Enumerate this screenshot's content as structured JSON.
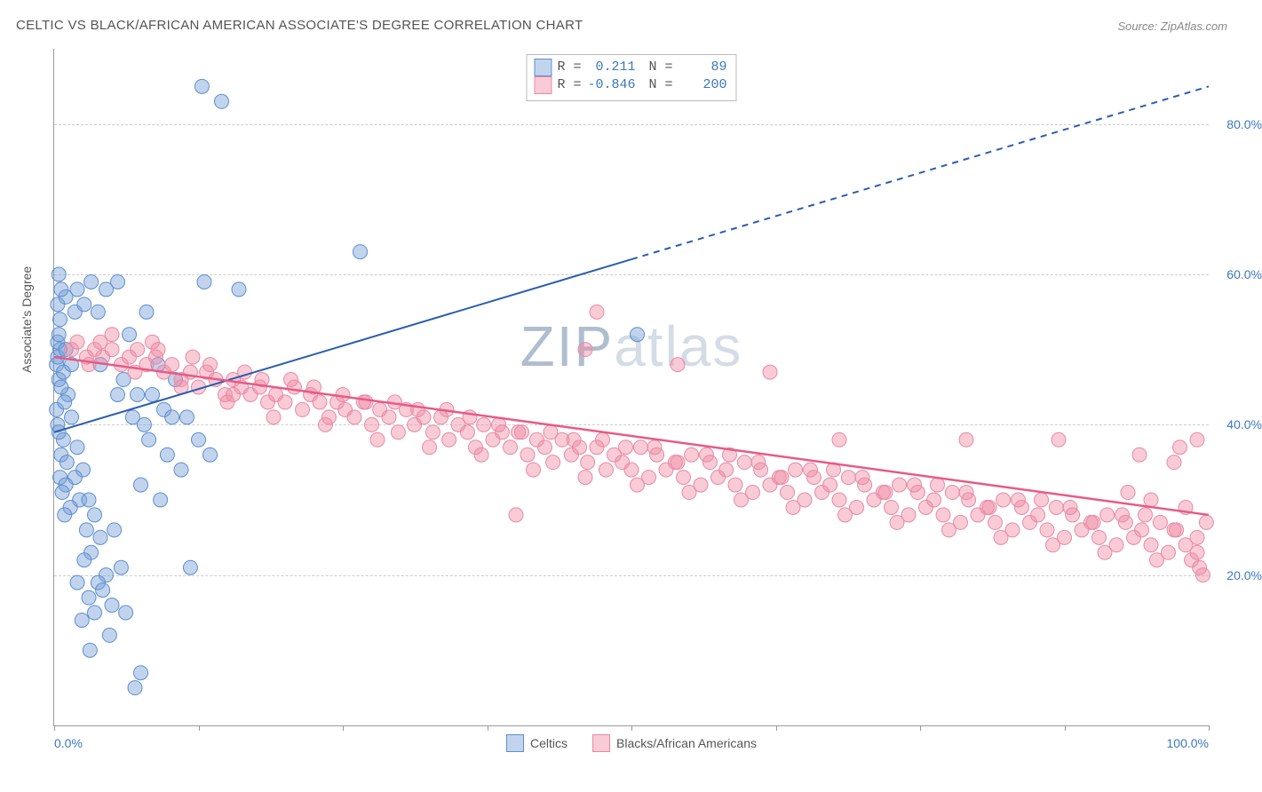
{
  "title": "CELTIC VS BLACK/AFRICAN AMERICAN ASSOCIATE'S DEGREE CORRELATION CHART",
  "source": "Source: ZipAtlas.com",
  "ylabel": "Associate's Degree",
  "watermark": {
    "z": "ZIP",
    "rest": "atlas"
  },
  "chart": {
    "type": "scatter",
    "xlim": [
      0,
      100
    ],
    "ylim": [
      0,
      90
    ],
    "yticks": [
      20,
      40,
      60,
      80
    ],
    "ytick_labels": [
      "20.0%",
      "40.0%",
      "60.0%",
      "80.0%"
    ],
    "xtick_positions": [
      0,
      12.5,
      25,
      37.5,
      50,
      62.5,
      75,
      87.5,
      100
    ],
    "xtick_labels": {
      "0": "0.0%",
      "100": "100.0%"
    },
    "grid_color": "#cccccc",
    "axis_color": "#999999",
    "background_color": "#ffffff"
  },
  "stats": [
    {
      "R": "0.211",
      "N": "89"
    },
    {
      "R": "-0.846",
      "N": "200"
    }
  ],
  "series": [
    {
      "name": "Celtics",
      "label": "Celtics",
      "marker_fill": "rgba(120,160,215,0.45)",
      "marker_stroke": "#5b8fd0",
      "marker_radius": 8,
      "trend": {
        "x1": 0,
        "y1": 39,
        "x2_solid": 50,
        "y2_solid": 62,
        "x2_dash": 100,
        "y2_dash": 85,
        "color": "#2a5db0",
        "width": 2
      },
      "points": [
        [
          0.2,
          48
        ],
        [
          0.3,
          49
        ],
        [
          0.5,
          50
        ],
        [
          0.4,
          46
        ],
        [
          0.8,
          47
        ],
        [
          0.3,
          51
        ],
        [
          1.0,
          50
        ],
        [
          0.4,
          52
        ],
        [
          1.2,
          44
        ],
        [
          0.6,
          45
        ],
        [
          0.2,
          42
        ],
        [
          0.9,
          43
        ],
        [
          1.5,
          41
        ],
        [
          0.3,
          40
        ],
        [
          0.8,
          38
        ],
        [
          0.4,
          39
        ],
        [
          2.0,
          37
        ],
        [
          0.6,
          36
        ],
        [
          1.1,
          35
        ],
        [
          2.5,
          34
        ],
        [
          0.5,
          33
        ],
        [
          1.8,
          33
        ],
        [
          1.0,
          32
        ],
        [
          0.7,
          31
        ],
        [
          2.2,
          30
        ],
        [
          3.0,
          30
        ],
        [
          1.4,
          29
        ],
        [
          0.9,
          28
        ],
        [
          3.5,
          28
        ],
        [
          2.8,
          26
        ],
        [
          4.0,
          25
        ],
        [
          5.2,
          26
        ],
        [
          3.2,
          23
        ],
        [
          2.6,
          22
        ],
        [
          5.8,
          21
        ],
        [
          4.5,
          20
        ],
        [
          3.8,
          19
        ],
        [
          2.0,
          19
        ],
        [
          4.2,
          18
        ],
        [
          3.0,
          17
        ],
        [
          5.0,
          16
        ],
        [
          3.5,
          15
        ],
        [
          6.2,
          15
        ],
        [
          2.4,
          14
        ],
        [
          4.8,
          12
        ],
        [
          3.1,
          10
        ],
        [
          7.5,
          7
        ],
        [
          7.0,
          5
        ],
        [
          0.5,
          54
        ],
        [
          1.8,
          55
        ],
        [
          0.3,
          56
        ],
        [
          2.6,
          56
        ],
        [
          3.8,
          55
        ],
        [
          1.0,
          57
        ],
        [
          0.6,
          58
        ],
        [
          4.5,
          58
        ],
        [
          2.0,
          58
        ],
        [
          3.2,
          59
        ],
        [
          5.5,
          59
        ],
        [
          0.4,
          60
        ],
        [
          1.5,
          48
        ],
        [
          4.0,
          48
        ],
        [
          6.0,
          46
        ],
        [
          7.2,
          44
        ],
        [
          8.5,
          44
        ],
        [
          9.5,
          42
        ],
        [
          7.8,
          40
        ],
        [
          10.2,
          41
        ],
        [
          11.5,
          41
        ],
        [
          13.0,
          59
        ],
        [
          16.0,
          58
        ],
        [
          12.8,
          85
        ],
        [
          14.5,
          83
        ],
        [
          26.5,
          63
        ],
        [
          50.5,
          52
        ],
        [
          8.0,
          55
        ],
        [
          6.5,
          52
        ],
        [
          9.0,
          48
        ],
        [
          10.5,
          46
        ],
        [
          5.5,
          44
        ],
        [
          6.8,
          41
        ],
        [
          8.2,
          38
        ],
        [
          9.8,
          36
        ],
        [
          11.0,
          34
        ],
        [
          7.5,
          32
        ],
        [
          9.2,
          30
        ],
        [
          11.8,
          21
        ],
        [
          12.5,
          38
        ],
        [
          13.5,
          36
        ]
      ]
    },
    {
      "name": "Blacks/African Americans",
      "label": "Blacks/African Americans",
      "marker_fill": "rgba(240,140,165,0.45)",
      "marker_stroke": "#e88aa5",
      "marker_radius": 8,
      "trend": {
        "x1": 0,
        "y1": 49,
        "x2_solid": 100,
        "y2_solid": 28,
        "color": "#e85a85",
        "width": 2.5
      },
      "points": [
        [
          1.5,
          50
        ],
        [
          2.0,
          51
        ],
        [
          2.8,
          49
        ],
        [
          3.5,
          50
        ],
        [
          4.2,
          49
        ],
        [
          5.0,
          50
        ],
        [
          5.8,
          48
        ],
        [
          6.5,
          49
        ],
        [
          7.2,
          50
        ],
        [
          8.0,
          48
        ],
        [
          8.8,
          49
        ],
        [
          9.5,
          47
        ],
        [
          10.2,
          48
        ],
        [
          11.0,
          46
        ],
        [
          11.8,
          47
        ],
        [
          12.5,
          45
        ],
        [
          13.2,
          47
        ],
        [
          14.0,
          46
        ],
        [
          14.8,
          44
        ],
        [
          15.5,
          46
        ],
        [
          16.2,
          45
        ],
        [
          17.0,
          44
        ],
        [
          17.8,
          45
        ],
        [
          18.5,
          43
        ],
        [
          19.2,
          44
        ],
        [
          20.0,
          43
        ],
        [
          20.8,
          45
        ],
        [
          21.5,
          42
        ],
        [
          22.2,
          44
        ],
        [
          23.0,
          43
        ],
        [
          23.8,
          41
        ],
        [
          24.5,
          43
        ],
        [
          25.2,
          42
        ],
        [
          26.0,
          41
        ],
        [
          26.8,
          43
        ],
        [
          27.5,
          40
        ],
        [
          28.2,
          42
        ],
        [
          29.0,
          41
        ],
        [
          29.8,
          39
        ],
        [
          30.5,
          42
        ],
        [
          31.2,
          40
        ],
        [
          32.0,
          41
        ],
        [
          32.8,
          39
        ],
        [
          33.5,
          41
        ],
        [
          34.2,
          38
        ],
        [
          35.0,
          40
        ],
        [
          35.8,
          39
        ],
        [
          36.5,
          37
        ],
        [
          37.2,
          40
        ],
        [
          38.0,
          38
        ],
        [
          38.8,
          39
        ],
        [
          39.5,
          37
        ],
        [
          40.2,
          39
        ],
        [
          41.0,
          36
        ],
        [
          41.8,
          38
        ],
        [
          42.5,
          37
        ],
        [
          43.2,
          35
        ],
        [
          44.0,
          38
        ],
        [
          44.8,
          36
        ],
        [
          45.5,
          37
        ],
        [
          46.2,
          35
        ],
        [
          47.0,
          37
        ],
        [
          47.8,
          34
        ],
        [
          48.5,
          36
        ],
        [
          49.2,
          35
        ],
        [
          50.0,
          34
        ],
        [
          50.8,
          37
        ],
        [
          51.5,
          33
        ],
        [
          52.2,
          36
        ],
        [
          53.0,
          34
        ],
        [
          53.8,
          35
        ],
        [
          54.5,
          33
        ],
        [
          55.2,
          36
        ],
        [
          56.0,
          32
        ],
        [
          56.8,
          35
        ],
        [
          57.5,
          33
        ],
        [
          58.2,
          34
        ],
        [
          59.0,
          32
        ],
        [
          59.8,
          35
        ],
        [
          60.5,
          31
        ],
        [
          61.2,
          34
        ],
        [
          62.0,
          32
        ],
        [
          62.8,
          33
        ],
        [
          63.5,
          31
        ],
        [
          64.2,
          34
        ],
        [
          65.0,
          30
        ],
        [
          65.8,
          33
        ],
        [
          66.5,
          31
        ],
        [
          67.2,
          32
        ],
        [
          68.0,
          30
        ],
        [
          68.8,
          33
        ],
        [
          69.5,
          29
        ],
        [
          70.2,
          32
        ],
        [
          71.0,
          30
        ],
        [
          71.8,
          31
        ],
        [
          72.5,
          29
        ],
        [
          73.2,
          32
        ],
        [
          74.0,
          28
        ],
        [
          74.8,
          31
        ],
        [
          75.5,
          29
        ],
        [
          76.2,
          30
        ],
        [
          77.0,
          28
        ],
        [
          77.8,
          31
        ],
        [
          78.5,
          27
        ],
        [
          79.2,
          30
        ],
        [
          80.0,
          28
        ],
        [
          80.8,
          29
        ],
        [
          81.5,
          27
        ],
        [
          82.2,
          30
        ],
        [
          83.0,
          26
        ],
        [
          83.8,
          29
        ],
        [
          84.5,
          27
        ],
        [
          85.2,
          28
        ],
        [
          86.0,
          26
        ],
        [
          86.8,
          29
        ],
        [
          87.5,
          25
        ],
        [
          88.2,
          28
        ],
        [
          89.0,
          26
        ],
        [
          89.8,
          27
        ],
        [
          90.5,
          25
        ],
        [
          91.2,
          28
        ],
        [
          92.0,
          24
        ],
        [
          92.8,
          27
        ],
        [
          93.5,
          25
        ],
        [
          94.2,
          26
        ],
        [
          95.0,
          24
        ],
        [
          95.8,
          27
        ],
        [
          96.5,
          23
        ],
        [
          97.2,
          26
        ],
        [
          98.0,
          24
        ],
        [
          98.5,
          22
        ],
        [
          99.0,
          25
        ],
        [
          99.5,
          20
        ],
        [
          99.8,
          27
        ],
        [
          5.0,
          52
        ],
        [
          8.5,
          51
        ],
        [
          12.0,
          49
        ],
        [
          16.5,
          47
        ],
        [
          20.5,
          46
        ],
        [
          25.0,
          44
        ],
        [
          29.5,
          43
        ],
        [
          34.0,
          42
        ],
        [
          38.5,
          40
        ],
        [
          43.0,
          39
        ],
        [
          47.5,
          38
        ],
        [
          52.0,
          37
        ],
        [
          56.5,
          36
        ],
        [
          61.0,
          35
        ],
        [
          65.5,
          34
        ],
        [
          70.0,
          33
        ],
        [
          74.5,
          32
        ],
        [
          79.0,
          31
        ],
        [
          83.5,
          30
        ],
        [
          88.0,
          29
        ],
        [
          92.5,
          28
        ],
        [
          97.0,
          26
        ],
        [
          99.2,
          21
        ],
        [
          15.0,
          43
        ],
        [
          19.0,
          41
        ],
        [
          23.5,
          40
        ],
        [
          28.0,
          38
        ],
        [
          32.5,
          37
        ],
        [
          37.0,
          36
        ],
        [
          41.5,
          34
        ],
        [
          46.0,
          33
        ],
        [
          50.5,
          32
        ],
        [
          55.0,
          31
        ],
        [
          59.5,
          30
        ],
        [
          64.0,
          29
        ],
        [
          68.5,
          28
        ],
        [
          73.0,
          27
        ],
        [
          77.5,
          26
        ],
        [
          82.0,
          25
        ],
        [
          86.5,
          24
        ],
        [
          91.0,
          23
        ],
        [
          95.5,
          22
        ],
        [
          3.0,
          48
        ],
        [
          7.0,
          47
        ],
        [
          11.0,
          45
        ],
        [
          15.5,
          44
        ],
        [
          4.0,
          51
        ],
        [
          9.0,
          50
        ],
        [
          13.5,
          48
        ],
        [
          18.0,
          46
        ],
        [
          22.5,
          45
        ],
        [
          27.0,
          43
        ],
        [
          31.5,
          42
        ],
        [
          36.0,
          41
        ],
        [
          40.5,
          39
        ],
        [
          45.0,
          38
        ],
        [
          49.5,
          37
        ],
        [
          54.0,
          35
        ],
        [
          58.5,
          36
        ],
        [
          63.0,
          33
        ],
        [
          67.5,
          34
        ],
        [
          72.0,
          31
        ],
        [
          76.5,
          32
        ],
        [
          81.0,
          29
        ],
        [
          85.5,
          30
        ],
        [
          90.0,
          27
        ],
        [
          94.5,
          28
        ],
        [
          99.0,
          23
        ],
        [
          47.0,
          55
        ],
        [
          46.0,
          50
        ],
        [
          54.0,
          48
        ],
        [
          62.0,
          47
        ],
        [
          68.0,
          38
        ],
        [
          79.0,
          38
        ],
        [
          87.0,
          38
        ],
        [
          94.0,
          36
        ],
        [
          97.5,
          37
        ],
        [
          99.0,
          38
        ],
        [
          98.0,
          29
        ],
        [
          97.0,
          35
        ],
        [
          95.0,
          30
        ],
        [
          93.0,
          31
        ],
        [
          40.0,
          28
        ]
      ]
    }
  ]
}
